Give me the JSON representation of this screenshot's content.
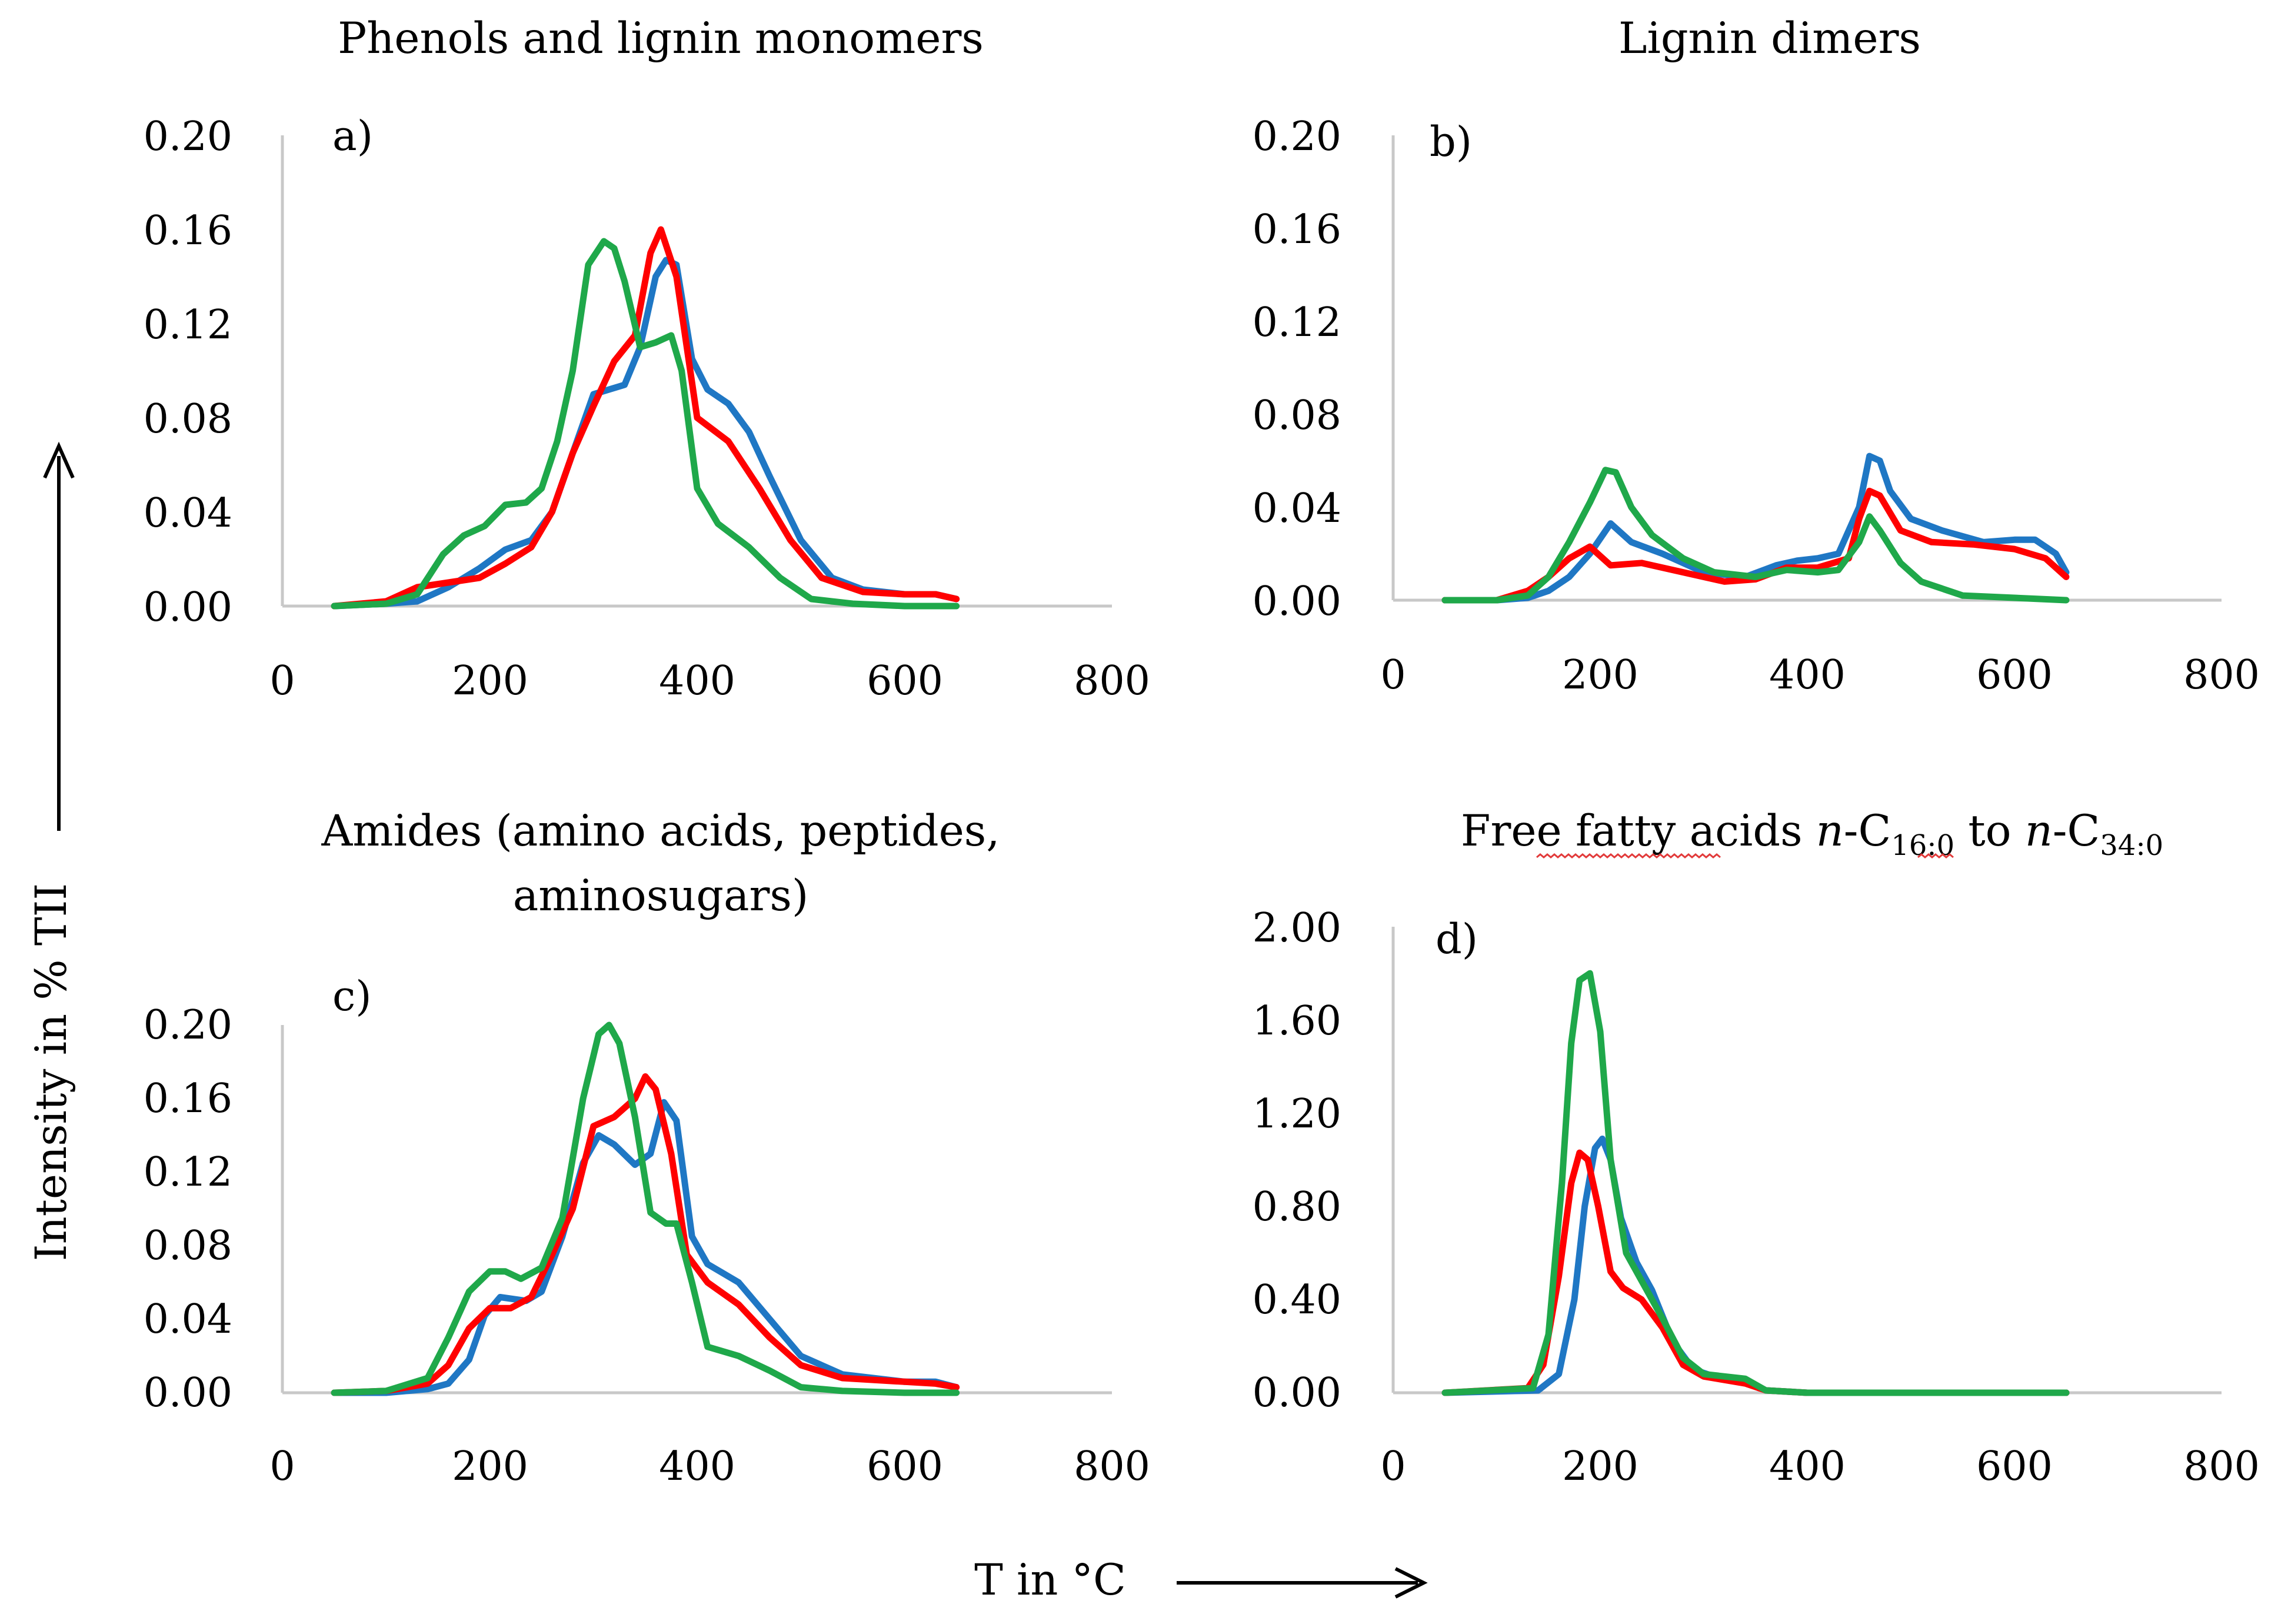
{
  "figure": {
    "y_axis_title": "Intensity in % TII",
    "x_axis_title": "T in °C",
    "colors": {
      "blue": "#1f77c4",
      "red": "#ff0000",
      "green": "#1fa84a",
      "axis": "#c8c8c8"
    }
  },
  "panels": {
    "a": {
      "label": "a)",
      "title_lines": [
        "Phenols and lignin monomers"
      ],
      "ytick_labels": [
        "0.00",
        "0.04",
        "0.08",
        "0.12",
        "0.16",
        "0.20"
      ],
      "xtick_labels": [
        "0",
        "200",
        "400",
        "600",
        "800"
      ]
    },
    "b": {
      "label": "b)",
      "title_lines": [
        "Lignin dimers"
      ],
      "ytick_labels": [
        "0.00",
        "0.04",
        "0.08",
        "0.12",
        "0.16",
        "0.20"
      ],
      "xtick_labels": [
        "0",
        "200",
        "400",
        "600",
        "800"
      ]
    },
    "c": {
      "label": "c)",
      "title_lines": [
        "Amides (amino acids, peptides,",
        "aminosugars)"
      ],
      "ytick_labels": [
        "0.00",
        "0.04",
        "0.08",
        "0.12",
        "0.16",
        "0.20"
      ],
      "xtick_labels": [
        "0",
        "200",
        "400",
        "600",
        "800"
      ]
    },
    "d": {
      "label": "d)",
      "title_parts": {
        "prefix": "Free fatty acids ",
        "n1": "n",
        "c1": "-C",
        "sub1": "16:0",
        "mid": " to ",
        "n2": "n",
        "c2": "-C",
        "sub2": "34:0"
      },
      "ytick_labels": [
        "0.00",
        "0.40",
        "0.80",
        "1.20",
        "1.60",
        "2.00"
      ],
      "xtick_labels": [
        "0",
        "200",
        "400",
        "600",
        "800"
      ]
    }
  },
  "chart_data": [
    {
      "id": "a",
      "type": "line",
      "title": "Phenols and lignin monomers",
      "xlabel": "T in °C",
      "ylabel": "Intensity in % TII",
      "xlim": [
        0,
        800
      ],
      "ylim": [
        0,
        0.2
      ],
      "grid": false,
      "series": [
        {
          "name": "blue",
          "color": "#1f77c4",
          "x": [
            50,
            100,
            130,
            160,
            190,
            215,
            240,
            260,
            280,
            300,
            315,
            330,
            345,
            360,
            370,
            380,
            395,
            410,
            430,
            450,
            470,
            500,
            530,
            560,
            600,
            630,
            650
          ],
          "y": [
            0,
            0.001,
            0.002,
            0.008,
            0.016,
            0.024,
            0.028,
            0.04,
            0.065,
            0.09,
            0.092,
            0.094,
            0.11,
            0.14,
            0.147,
            0.145,
            0.105,
            0.092,
            0.086,
            0.074,
            0.055,
            0.028,
            0.012,
            0.007,
            0.005,
            0.005,
            0.003
          ]
        },
        {
          "name": "red",
          "color": "#ff0000",
          "x": [
            50,
            100,
            130,
            160,
            190,
            215,
            240,
            260,
            280,
            300,
            320,
            340,
            355,
            365,
            380,
            400,
            430,
            460,
            490,
            520,
            560,
            600,
            630,
            650
          ],
          "y": [
            0,
            0.002,
            0.008,
            0.01,
            0.012,
            0.018,
            0.025,
            0.04,
            0.065,
            0.085,
            0.104,
            0.115,
            0.15,
            0.16,
            0.14,
            0.08,
            0.07,
            0.05,
            0.028,
            0.012,
            0.006,
            0.005,
            0.005,
            0.003
          ]
        },
        {
          "name": "green",
          "color": "#1fa84a",
          "x": [
            50,
            100,
            130,
            155,
            175,
            195,
            215,
            235,
            250,
            265,
            280,
            295,
            310,
            320,
            330,
            345,
            360,
            375,
            385,
            400,
            420,
            450,
            480,
            510,
            550,
            600,
            650
          ],
          "y": [
            0,
            0.001,
            0.005,
            0.022,
            0.03,
            0.034,
            0.043,
            0.044,
            0.05,
            0.07,
            0.1,
            0.145,
            0.155,
            0.152,
            0.138,
            0.11,
            0.112,
            0.115,
            0.1,
            0.05,
            0.035,
            0.025,
            0.012,
            0.003,
            0.001,
            0,
            0
          ]
        }
      ]
    },
    {
      "id": "b",
      "type": "line",
      "title": "Lignin dimers",
      "xlabel": "T in °C",
      "ylabel": "Intensity in % TII",
      "xlim": [
        0,
        800
      ],
      "ylim": [
        0,
        0.2
      ],
      "grid": false,
      "series": [
        {
          "name": "blue",
          "color": "#1f77c4",
          "x": [
            50,
            100,
            130,
            150,
            170,
            190,
            210,
            230,
            260,
            300,
            340,
            370,
            390,
            410,
            430,
            450,
            460,
            470,
            480,
            500,
            530,
            570,
            600,
            620,
            640,
            650
          ],
          "y": [
            0,
            0,
            0.001,
            0.004,
            0.01,
            0.02,
            0.033,
            0.025,
            0.02,
            0.012,
            0.01,
            0.015,
            0.017,
            0.018,
            0.02,
            0.04,
            0.062,
            0.06,
            0.047,
            0.035,
            0.03,
            0.025,
            0.026,
            0.026,
            0.02,
            0.012
          ]
        },
        {
          "name": "red",
          "color": "#ff0000",
          "x": [
            50,
            100,
            130,
            150,
            170,
            190,
            210,
            240,
            280,
            320,
            350,
            380,
            410,
            440,
            450,
            460,
            470,
            490,
            520,
            560,
            600,
            630,
            650
          ],
          "y": [
            0,
            0,
            0.004,
            0.01,
            0.018,
            0.023,
            0.015,
            0.016,
            0.012,
            0.008,
            0.009,
            0.014,
            0.014,
            0.018,
            0.035,
            0.047,
            0.045,
            0.03,
            0.025,
            0.024,
            0.022,
            0.018,
            0.01
          ]
        },
        {
          "name": "green",
          "color": "#1fa84a",
          "x": [
            50,
            100,
            130,
            150,
            170,
            190,
            205,
            215,
            230,
            250,
            280,
            310,
            350,
            380,
            410,
            430,
            450,
            460,
            470,
            490,
            510,
            550,
            600,
            650
          ],
          "y": [
            0,
            0,
            0.002,
            0.01,
            0.025,
            0.042,
            0.056,
            0.055,
            0.04,
            0.028,
            0.018,
            0.012,
            0.01,
            0.013,
            0.012,
            0.013,
            0.025,
            0.036,
            0.03,
            0.016,
            0.008,
            0.002,
            0.001,
            0
          ]
        }
      ]
    },
    {
      "id": "c",
      "type": "line",
      "title": "Amides (amino acids, peptides, aminosugars)",
      "xlabel": "T in °C",
      "ylabel": "Intensity in % TII",
      "xlim": [
        0,
        800
      ],
      "ylim": [
        0,
        0.2
      ],
      "grid": false,
      "series": [
        {
          "name": "blue",
          "color": "#1f77c4",
          "x": [
            50,
            100,
            140,
            160,
            180,
            195,
            210,
            235,
            250,
            270,
            290,
            305,
            320,
            340,
            355,
            368,
            380,
            395,
            410,
            440,
            470,
            500,
            540,
            600,
            630,
            650
          ],
          "y": [
            0,
            0,
            0.002,
            0.005,
            0.018,
            0.042,
            0.052,
            0.05,
            0.055,
            0.085,
            0.125,
            0.14,
            0.135,
            0.124,
            0.13,
            0.158,
            0.148,
            0.085,
            0.07,
            0.06,
            0.04,
            0.02,
            0.01,
            0.006,
            0.006,
            0.003
          ]
        },
        {
          "name": "red",
          "color": "#ff0000",
          "x": [
            50,
            100,
            140,
            160,
            180,
            200,
            220,
            240,
            260,
            280,
            300,
            320,
            340,
            350,
            360,
            375,
            390,
            410,
            440,
            470,
            500,
            540,
            600,
            630,
            650
          ],
          "y": [
            0,
            0.001,
            0.005,
            0.015,
            0.035,
            0.046,
            0.046,
            0.052,
            0.075,
            0.1,
            0.145,
            0.15,
            0.16,
            0.172,
            0.165,
            0.13,
            0.075,
            0.06,
            0.048,
            0.03,
            0.015,
            0.008,
            0.006,
            0.005,
            0.003
          ]
        },
        {
          "name": "green",
          "color": "#1fa84a",
          "x": [
            50,
            100,
            140,
            160,
            180,
            200,
            215,
            230,
            250,
            270,
            290,
            305,
            315,
            325,
            340,
            355,
            370,
            380,
            395,
            410,
            440,
            470,
            500,
            540,
            600,
            650
          ],
          "y": [
            0,
            0.001,
            0.008,
            0.03,
            0.055,
            0.066,
            0.066,
            0.062,
            0.068,
            0.095,
            0.16,
            0.195,
            0.2,
            0.19,
            0.15,
            0.098,
            0.092,
            0.092,
            0.06,
            0.025,
            0.02,
            0.012,
            0.003,
            0.001,
            0,
            0
          ]
        }
      ]
    },
    {
      "id": "d",
      "type": "line",
      "title": "Free fatty acids n-C16:0 to n-C34:0",
      "xlabel": "T in °C",
      "ylabel": "Intensity in % TII",
      "xlim": [
        0,
        800
      ],
      "ylim": [
        0,
        2.0
      ],
      "grid": false,
      "series": [
        {
          "name": "blue",
          "color": "#1f77c4",
          "x": [
            50,
            140,
            160,
            175,
            185,
            195,
            202,
            210,
            220,
            235,
            250,
            270,
            290,
            310,
            340,
            360,
            400,
            500,
            650
          ],
          "y": [
            0,
            0.01,
            0.08,
            0.4,
            0.8,
            1.05,
            1.09,
            1.0,
            0.75,
            0.56,
            0.44,
            0.22,
            0.1,
            0.07,
            0.05,
            0.01,
            0,
            0,
            0
          ]
        },
        {
          "name": "red",
          "color": "#ff0000",
          "x": [
            50,
            130,
            145,
            160,
            172,
            180,
            188,
            198,
            210,
            222,
            240,
            260,
            280,
            300,
            340,
            360,
            400,
            650
          ],
          "y": [
            0,
            0.02,
            0.12,
            0.5,
            0.9,
            1.03,
            1.0,
            0.8,
            0.52,
            0.45,
            0.4,
            0.28,
            0.12,
            0.07,
            0.04,
            0.01,
            0,
            0
          ]
        },
        {
          "name": "green",
          "color": "#1fa84a",
          "x": [
            50,
            135,
            150,
            163,
            172,
            180,
            190,
            200,
            210,
            225,
            240,
            260,
            280,
            300,
            340,
            360,
            400,
            650
          ],
          "y": [
            0,
            0.02,
            0.25,
            0.9,
            1.5,
            1.77,
            1.8,
            1.55,
            1.0,
            0.6,
            0.48,
            0.32,
            0.15,
            0.08,
            0.06,
            0.01,
            0,
            0
          ]
        }
      ]
    }
  ]
}
